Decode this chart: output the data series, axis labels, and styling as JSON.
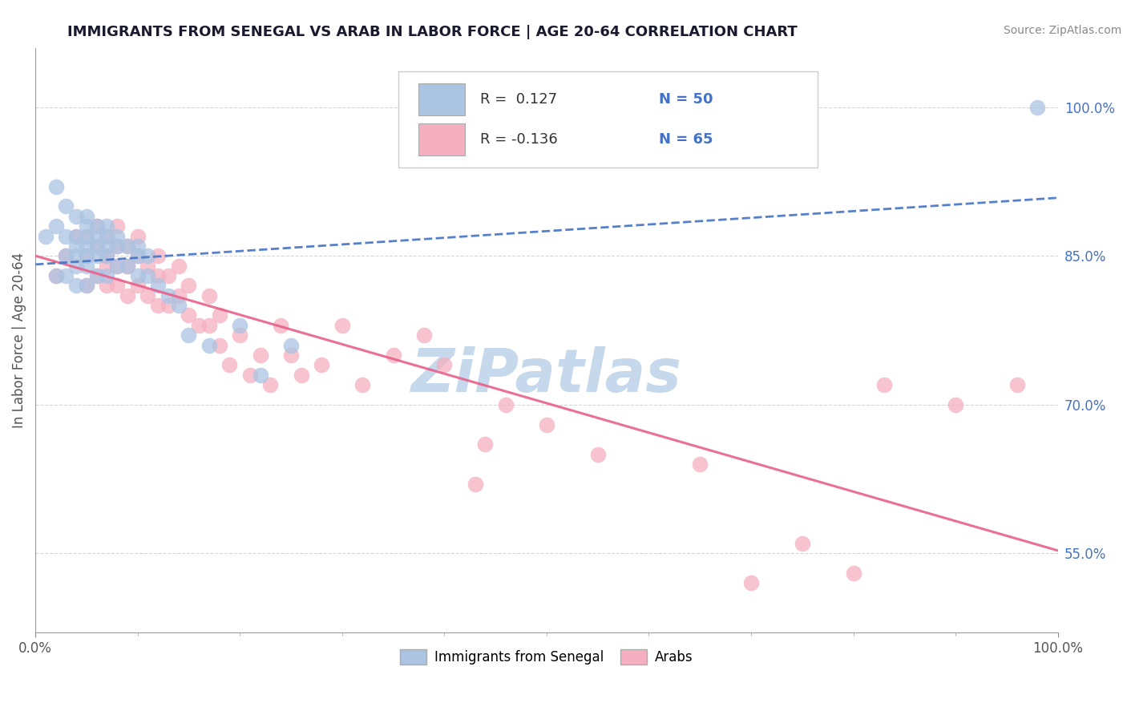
{
  "title": "IMMIGRANTS FROM SENEGAL VS ARAB IN LABOR FORCE | AGE 20-64 CORRELATION CHART",
  "source": "Source: ZipAtlas.com",
  "ylabel": "In Labor Force | Age 20-64",
  "ylabel_right_labels": [
    "100.0%",
    "85.0%",
    "70.0%",
    "55.0%"
  ],
  "ylabel_right_values": [
    1.0,
    0.85,
    0.7,
    0.55
  ],
  "xlim": [
    0.0,
    1.0
  ],
  "ylim": [
    0.47,
    1.06
  ],
  "legend_R_senegal": "0.127",
  "legend_N_senegal": "50",
  "legend_R_arab": "-0.136",
  "legend_N_arab": "65",
  "legend_label_senegal": "Immigrants from Senegal",
  "legend_label_arab": "Arabs",
  "senegal_color": "#aac4e2",
  "arab_color": "#f5afc0",
  "senegal_line_color": "#4472c4",
  "arab_line_color": "#e8608a",
  "background_color": "#ffffff",
  "grid_color": "#cccccc",
  "title_color": "#1a1a2e",
  "senegal_x": [
    0.01,
    0.02,
    0.02,
    0.02,
    0.03,
    0.03,
    0.03,
    0.03,
    0.04,
    0.04,
    0.04,
    0.04,
    0.04,
    0.04,
    0.05,
    0.05,
    0.05,
    0.05,
    0.05,
    0.05,
    0.05,
    0.06,
    0.06,
    0.06,
    0.06,
    0.06,
    0.07,
    0.07,
    0.07,
    0.07,
    0.07,
    0.08,
    0.08,
    0.08,
    0.09,
    0.09,
    0.1,
    0.1,
    0.1,
    0.11,
    0.11,
    0.12,
    0.13,
    0.14,
    0.15,
    0.17,
    0.2,
    0.22,
    0.25,
    0.98
  ],
  "senegal_y": [
    0.87,
    0.92,
    0.88,
    0.83,
    0.9,
    0.87,
    0.85,
    0.83,
    0.89,
    0.87,
    0.86,
    0.85,
    0.84,
    0.82,
    0.89,
    0.88,
    0.87,
    0.86,
    0.85,
    0.84,
    0.82,
    0.88,
    0.87,
    0.86,
    0.85,
    0.83,
    0.88,
    0.87,
    0.86,
    0.85,
    0.83,
    0.87,
    0.86,
    0.84,
    0.86,
    0.84,
    0.86,
    0.85,
    0.83,
    0.85,
    0.83,
    0.82,
    0.81,
    0.8,
    0.77,
    0.76,
    0.78,
    0.73,
    0.76,
    1.0
  ],
  "arab_x": [
    0.02,
    0.03,
    0.04,
    0.05,
    0.05,
    0.05,
    0.06,
    0.06,
    0.06,
    0.07,
    0.07,
    0.07,
    0.07,
    0.08,
    0.08,
    0.08,
    0.08,
    0.09,
    0.09,
    0.09,
    0.1,
    0.1,
    0.1,
    0.11,
    0.11,
    0.12,
    0.12,
    0.12,
    0.13,
    0.13,
    0.14,
    0.14,
    0.15,
    0.15,
    0.16,
    0.17,
    0.17,
    0.18,
    0.18,
    0.19,
    0.2,
    0.21,
    0.22,
    0.23,
    0.24,
    0.25,
    0.26,
    0.28,
    0.3,
    0.32,
    0.35,
    0.38,
    0.4,
    0.43,
    0.44,
    0.46,
    0.5,
    0.55,
    0.65,
    0.7,
    0.75,
    0.8,
    0.83,
    0.9,
    0.96
  ],
  "arab_y": [
    0.83,
    0.85,
    0.87,
    0.87,
    0.85,
    0.82,
    0.88,
    0.86,
    0.83,
    0.87,
    0.85,
    0.84,
    0.82,
    0.88,
    0.86,
    0.84,
    0.82,
    0.86,
    0.84,
    0.81,
    0.87,
    0.85,
    0.82,
    0.84,
    0.81,
    0.85,
    0.83,
    0.8,
    0.83,
    0.8,
    0.84,
    0.81,
    0.82,
    0.79,
    0.78,
    0.81,
    0.78,
    0.79,
    0.76,
    0.74,
    0.77,
    0.73,
    0.75,
    0.72,
    0.78,
    0.75,
    0.73,
    0.74,
    0.78,
    0.72,
    0.75,
    0.77,
    0.74,
    0.62,
    0.66,
    0.7,
    0.68,
    0.65,
    0.64,
    0.52,
    0.56,
    0.53,
    0.72,
    0.7,
    0.72
  ],
  "watermark": "ZiPatlas",
  "watermark_color": "#c5d8ec"
}
